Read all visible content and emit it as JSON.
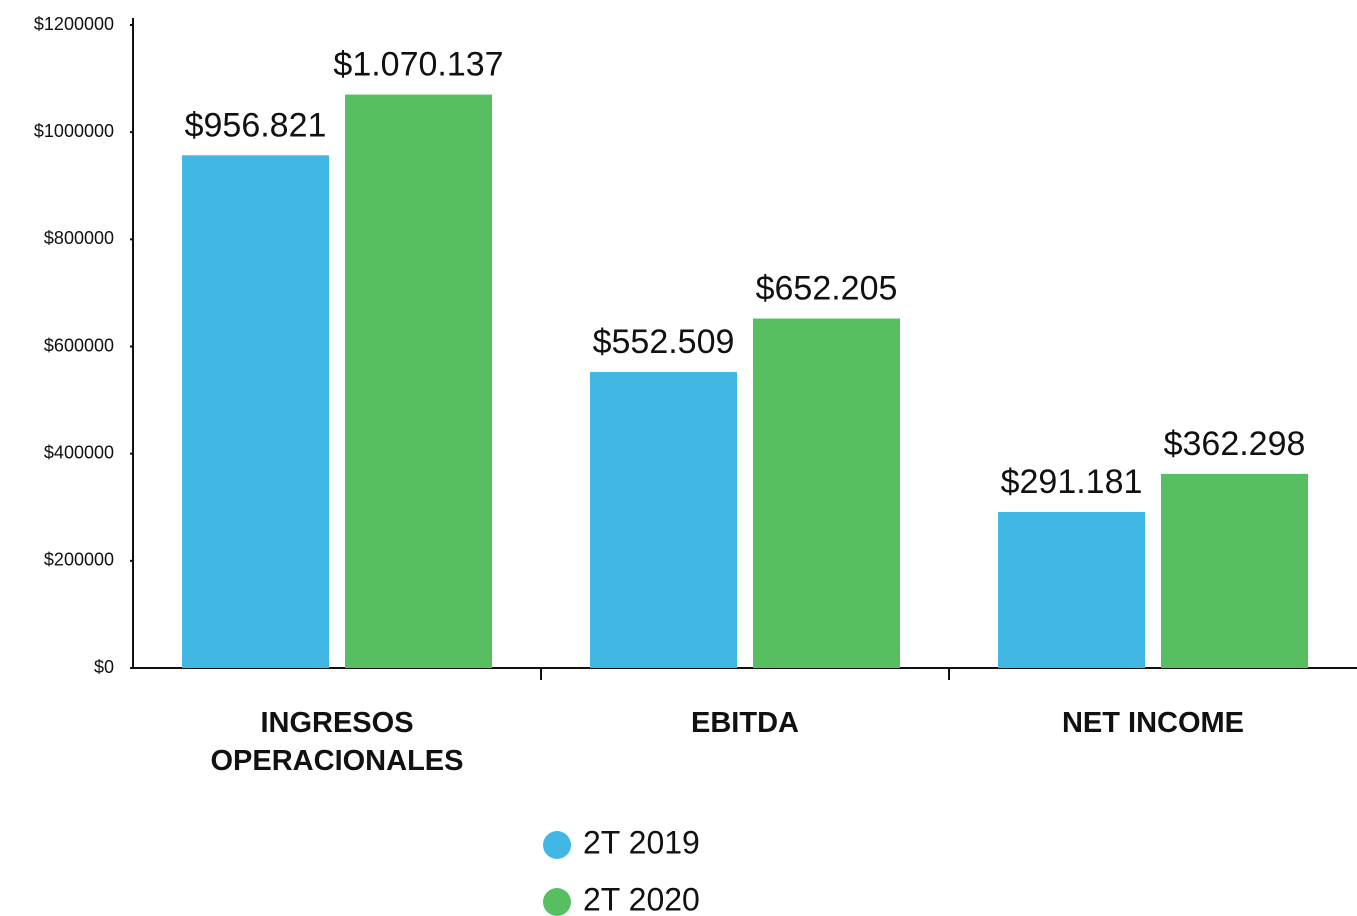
{
  "chart_data": {
    "type": "bar",
    "categories": [
      "INGRESOS OPERACIONALES",
      "EBITDA",
      "NET INCOME"
    ],
    "series": [
      {
        "name": "2T 2019",
        "color": "#41b8e4",
        "values": [
          956821,
          552509,
          291181
        ],
        "value_labels": [
          "$956.821",
          "$552.509",
          "$291.181"
        ]
      },
      {
        "name": "2T 2020",
        "color": "#57bf5f",
        "values": [
          1070137,
          652205,
          362298
        ],
        "value_labels": [
          "$1.070.137",
          "$652.205",
          "$362.298"
        ]
      }
    ],
    "ylim": [
      0,
      1200000
    ],
    "yticks": [
      {
        "value": 0,
        "label": "$0"
      },
      {
        "value": 200000,
        "label": "$200000"
      },
      {
        "value": 400000,
        "label": "$400000"
      },
      {
        "value": 600000,
        "label": "$600000"
      },
      {
        "value": 800000,
        "label": "$800000"
      },
      {
        "value": 1000000,
        "label": "$1000000"
      },
      {
        "value": 1200000,
        "label": "$1200000"
      }
    ],
    "grid": false
  }
}
